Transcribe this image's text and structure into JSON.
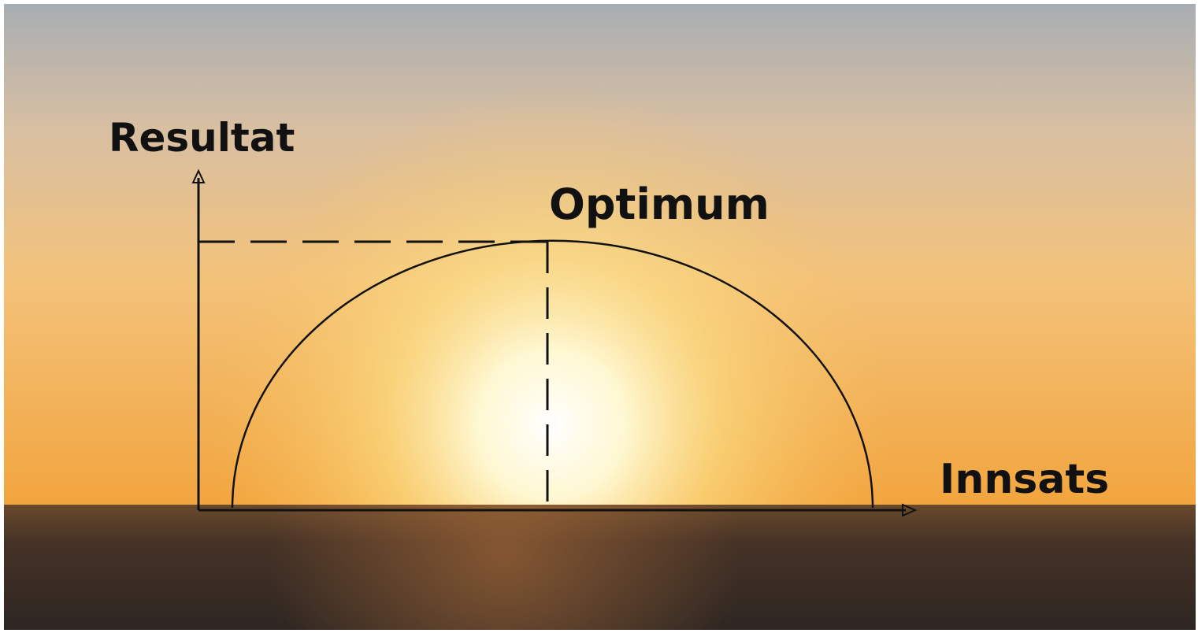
{
  "diagram": {
    "y_axis_label": "Resultat",
    "peak_label": "Optimum",
    "x_axis_label": "Innsats"
  }
}
